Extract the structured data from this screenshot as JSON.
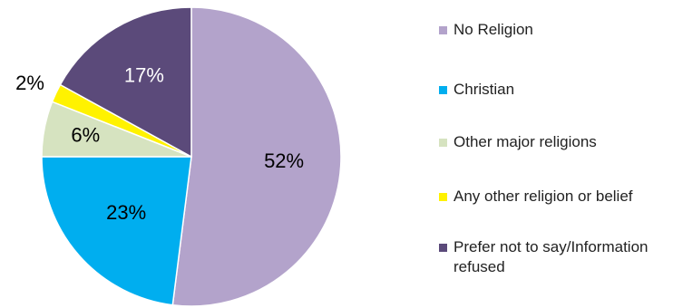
{
  "chart_data": {
    "type": "pie",
    "title": "",
    "legend_position": "right",
    "slices": [
      {
        "label": "No Religion",
        "value": 52,
        "display": "52%",
        "color": "#B3A3CB"
      },
      {
        "label": "Christian",
        "value": 23,
        "display": "23%",
        "color": "#00AEEF"
      },
      {
        "label": "Other major religions",
        "value": 6,
        "display": "6%",
        "color": "#D6E3C0"
      },
      {
        "label": "Any other religion or belief",
        "value": 2,
        "display": "2%",
        "color": "#FFF200"
      },
      {
        "label": "Prefer not to say/Information refused",
        "value": 17,
        "display": "17%",
        "color": "#5B4A7A"
      }
    ]
  },
  "legend": {
    "items": [
      {
        "label": "No Religion",
        "color": "#B3A3CB"
      },
      {
        "label": "Christian",
        "color": "#00AEEF"
      },
      {
        "label": "Other major religions",
        "color": "#D6E3C0"
      },
      {
        "label": "Any other religion or belief",
        "color": "#FFF200"
      },
      {
        "label": "Prefer not to say/Information refused",
        "color": "#5B4A7A"
      }
    ]
  }
}
